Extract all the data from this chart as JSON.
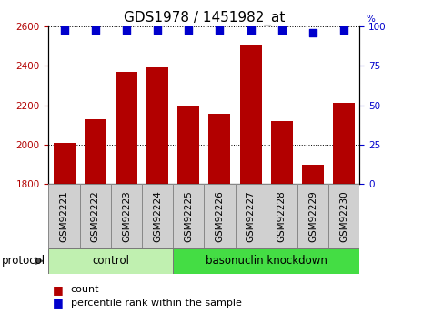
{
  "title": "GDS1978 / 1451982_at",
  "samples": [
    "GSM92221",
    "GSM92222",
    "GSM92223",
    "GSM92224",
    "GSM92225",
    "GSM92226",
    "GSM92227",
    "GSM92228",
    "GSM92229",
    "GSM92230"
  ],
  "counts": [
    2010,
    2130,
    2370,
    2395,
    2200,
    2155,
    2510,
    2120,
    1895,
    2210
  ],
  "percentile_ranks": [
    98,
    98,
    98,
    98,
    98,
    98,
    98,
    98,
    96,
    98
  ],
  "ylim_left": [
    1800,
    2600
  ],
  "ylim_right": [
    0,
    100
  ],
  "yticks_left": [
    1800,
    2000,
    2200,
    2400,
    2600
  ],
  "yticks_right": [
    0,
    25,
    50,
    75,
    100
  ],
  "bar_color": "#b20000",
  "dot_color": "#0000cc",
  "tick_bg_color": "#d0d0d0",
  "control_bg_light": "#c0f0b0",
  "knockdown_bg": "#44dd44",
  "control_label": "control",
  "knockdown_label": "basonuclin knockdown",
  "protocol_label": "protocol",
  "legend_count": "count",
  "legend_percentile": "percentile rank within the sample",
  "control_indices": [
    0,
    1,
    2,
    3
  ],
  "knockdown_indices": [
    4,
    5,
    6,
    7,
    8,
    9
  ],
  "bar_width": 0.7,
  "dot_size": 35,
  "title_fontsize": 11,
  "tick_fontsize": 7.5,
  "label_fontsize": 8.5,
  "legend_fontsize": 8
}
